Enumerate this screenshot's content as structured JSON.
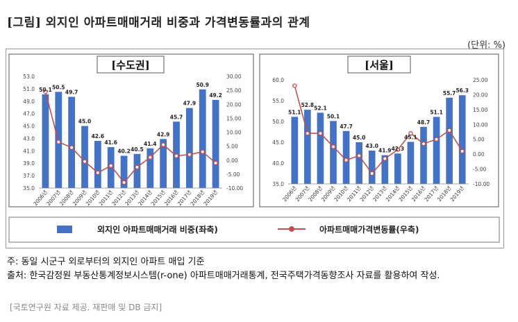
{
  "title": "[그림] 외지인 아파트매매거래 비중과 가격변동률과의 관계",
  "unit_label": "(단위: %)",
  "legend": {
    "bar": "외지인 아파트매매거래 비중(좌축)",
    "line": "아파트매매가격변동률(우축)"
  },
  "colors": {
    "bar": "#4472C4",
    "line": "#C0504D",
    "line_marker_fill": "#ffffff"
  },
  "notes": {
    "note1": "주: 동일 시군구 외로부터의 외지인 아파트 매입 기준",
    "source": "출처: 한국감정원 부동산통계정보시스템(r-one) 아파트매매거래통계, 전국주택가격동향조사 자료를 활용하여 작성."
  },
  "footer": "[국토연구원 자료 제공. 재판매 및 DB 금지]",
  "chart_data": [
    {
      "type": "bar",
      "title": "[수도권]",
      "categories": [
        "2006년",
        "2007년",
        "2008년",
        "2009년",
        "2010년",
        "2011년",
        "2012년",
        "2013년",
        "2014년",
        "2015년",
        "2016년",
        "2017년",
        "2018년",
        "2019년"
      ],
      "ylim_left": [
        35,
        53
      ],
      "yticks_left": [
        "53.0",
        "51.0",
        "49.0",
        "47.0",
        "45.0",
        "43.0",
        "41.0",
        "39.0",
        "37.0",
        "35.0"
      ],
      "ylim_right": [
        -10,
        30
      ],
      "yticks_right": [
        "30.00",
        "25.00",
        "20.00",
        "15.00",
        "10.00",
        "5.00",
        "0.00",
        "-5.00",
        "-10.00"
      ],
      "series": [
        {
          "name": "외지인 아파트매매거래 비중(좌축)",
          "axis": "left",
          "type": "bar",
          "values": [
            50.1,
            50.5,
            49.7,
            45.0,
            42.6,
            41.6,
            40.2,
            40.5,
            41.4,
            42.9,
            45.7,
            47.9,
            50.9,
            49.2
          ],
          "labels": [
            "50.1",
            "50.5",
            "49.7",
            "45.0",
            "42.6",
            "41.6",
            "40.2",
            "40.5",
            "41.4",
            "42.9",
            "45.7",
            "47.9",
            "50.9",
            "49.2"
          ]
        },
        {
          "name": "아파트매매가격변동률(우축)",
          "axis": "right",
          "type": "line",
          "values": [
            24.5,
            6.5,
            4.5,
            -0.5,
            -4.5,
            -2.0,
            -8.0,
            -2.5,
            1.0,
            5.5,
            1.5,
            2.0,
            3.0,
            -1.0
          ]
        }
      ]
    },
    {
      "type": "bar",
      "title": "[서울]",
      "categories": [
        "2006년",
        "2007년",
        "2008년",
        "2009년",
        "2010년",
        "2011년",
        "2012년",
        "2013년",
        "2014년",
        "2015년",
        "2016년",
        "2017년",
        "2018년",
        "2019년"
      ],
      "ylim_left": [
        35,
        60
      ],
      "yticks_left": [
        "60.0",
        "55.0",
        "50.0",
        "45.0",
        "40.0",
        "35.0"
      ],
      "ylim_right": [
        -10,
        25
      ],
      "yticks_right": [
        "25.00",
        "20.00",
        "15.00",
        "10.00",
        "5.00",
        "0.00",
        "-5.00",
        "-10.00"
      ],
      "series": [
        {
          "name": "외지인 아파트매매거래 비중(좌축)",
          "axis": "left",
          "type": "bar",
          "values": [
            51.1,
            52.8,
            52.1,
            50.1,
            47.7,
            45.0,
            43.0,
            41.9,
            42.3,
            45.1,
            48.7,
            51.1,
            55.7,
            56.3
          ],
          "labels": [
            "51.1",
            "52.8",
            "52.1",
            "50.1",
            "47.7",
            "45.0",
            "43.0",
            "41.9",
            "42.3",
            "45.1",
            "48.7",
            "51.1",
            "55.7",
            "56.3"
          ]
        },
        {
          "name": "아파트매매가격변동률(우축)",
          "axis": "right",
          "type": "line",
          "values": [
            23.0,
            7.0,
            7.0,
            2.5,
            -2.0,
            -0.5,
            -6.5,
            -1.5,
            1.5,
            7.0,
            3.5,
            5.0,
            8.0,
            1.0
          ]
        }
      ]
    }
  ]
}
